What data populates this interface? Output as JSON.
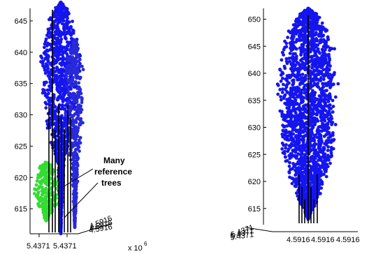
{
  "chart_data": [
    {
      "type": "scatter",
      "title": "",
      "xlabel": "",
      "ylabel": "",
      "ylim": [
        611,
        647
      ],
      "yticks": [
        615,
        620,
        625,
        630,
        635,
        640,
        645
      ],
      "yticklabels": [
        "615",
        "620",
        "625",
        "630",
        "635",
        "640",
        "645"
      ],
      "xticklabels": [
        "5.4371",
        "5.4371"
      ],
      "exponent_label": "x 10",
      "exponent_power": "6",
      "depth_tick_text": "4.5916",
      "annotation": [
        "Many",
        "reference",
        "trees"
      ],
      "series": [
        {
          "name": "",
          "color": "#1515ee",
          "crown_z": [
            [
              611,
              0
            ],
            [
              622,
              5
            ],
            [
              628,
              22
            ],
            [
              636,
              30
            ],
            [
              640,
              32
            ],
            [
              643,
              24
            ],
            [
              647,
              12
            ],
            [
              648,
              0
            ]
          ]
        },
        {
          "name": "",
          "color": "#2a2ad8",
          "crown_z": [
            [
              612,
              0
            ],
            [
              622,
              6
            ],
            [
              630,
              14
            ],
            [
              638,
              14
            ],
            [
              641,
              6
            ],
            [
              642,
              0
            ]
          ]
        },
        {
          "name": "",
          "color": "#33dd33",
          "crown_z": [
            [
              613,
              0
            ],
            [
              616,
              18
            ],
            [
              620,
              18
            ],
            [
              622,
              8
            ],
            [
              622.5,
              0
            ]
          ]
        }
      ]
    },
    {
      "type": "scatter",
      "title": "",
      "xlabel": "",
      "ylabel": "",
      "ylim": [
        612,
        652
      ],
      "yticks": [
        615,
        620,
        625,
        630,
        635,
        640,
        645,
        650
      ],
      "yticklabels": [
        "615",
        "620",
        "625",
        "630",
        "635",
        "640",
        "645",
        "650"
      ],
      "xticklabels": [
        "4.5916",
        "4.5916",
        "4.5916"
      ],
      "depth_tick_text": "5.4371",
      "series": [
        {
          "name": "",
          "color": "#1515ee",
          "crown_z": [
            [
              613,
              0
            ],
            [
              618,
              20
            ],
            [
              625,
              40
            ],
            [
              632,
              44
            ],
            [
              640,
              44
            ],
            [
              645,
              40
            ],
            [
              648,
              30
            ],
            [
              651,
              15
            ],
            [
              652,
              0
            ]
          ]
        }
      ]
    }
  ]
}
